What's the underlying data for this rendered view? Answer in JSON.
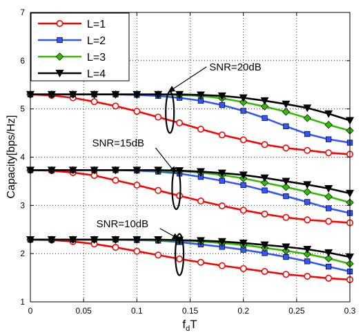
{
  "chart_data": {
    "type": "line",
    "xlabel": "f",
    "xlabel_sub": "d",
    "xlabel_suffix": "T",
    "ylabel": "Capacity[bps/Hz]",
    "xlim": [
      0,
      0.3
    ],
    "ylim": [
      1,
      7
    ],
    "x_ticks": [
      "0",
      "0.05",
      "0.1",
      "0.15",
      "0.2",
      "0.25",
      "0.3"
    ],
    "y_ticks": [
      "1",
      "2",
      "3",
      "4",
      "5",
      "6",
      "7"
    ],
    "grid": true,
    "legend_position": "top-left",
    "x": [
      0,
      0.02,
      0.04,
      0.06,
      0.08,
      0.1,
      0.12,
      0.14,
      0.16,
      0.18,
      0.2,
      0.22,
      0.24,
      0.26,
      0.28,
      0.3
    ],
    "series": [
      {
        "name": "L=1",
        "color": "#ff0000",
        "marker": "circle",
        "snr": "SNR=20dB",
        "values": [
          5.3,
          5.28,
          5.23,
          5.15,
          5.06,
          4.95,
          4.83,
          4.71,
          4.58,
          4.46,
          4.36,
          4.26,
          4.19,
          4.14,
          4.09,
          4.06
        ]
      },
      {
        "name": "L=2",
        "color": "#3355ff",
        "marker": "square",
        "snr": "SNR=20dB",
        "values": [
          5.3,
          5.3,
          5.3,
          5.3,
          5.3,
          5.29,
          5.27,
          5.23,
          5.17,
          5.08,
          4.96,
          4.81,
          4.64,
          4.48,
          4.37,
          4.3
        ]
      },
      {
        "name": "L=3",
        "color": "#33bb00",
        "marker": "diamond",
        "snr": "SNR=20dB",
        "values": [
          5.3,
          5.3,
          5.3,
          5.3,
          5.3,
          5.3,
          5.3,
          5.29,
          5.27,
          5.22,
          5.14,
          5.05,
          4.94,
          4.81,
          4.67,
          4.55
        ]
      },
      {
        "name": "L=4",
        "color": "#000000",
        "marker": "triangle-down",
        "snr": "SNR=20dB",
        "values": [
          5.3,
          5.3,
          5.3,
          5.3,
          5.3,
          5.3,
          5.3,
          5.3,
          5.29,
          5.27,
          5.23,
          5.17,
          5.1,
          5.02,
          4.9,
          4.76
        ]
      },
      {
        "name": "L=1",
        "color": "#ff0000",
        "marker": "circle",
        "snr": "SNR=15dB",
        "values": [
          3.73,
          3.72,
          3.68,
          3.62,
          3.52,
          3.42,
          3.31,
          3.2,
          3.09,
          2.99,
          2.9,
          2.82,
          2.75,
          2.7,
          2.67,
          2.64
        ]
      },
      {
        "name": "L=2",
        "color": "#3355ff",
        "marker": "square",
        "snr": "SNR=15dB",
        "values": [
          3.73,
          3.73,
          3.73,
          3.73,
          3.73,
          3.72,
          3.7,
          3.66,
          3.59,
          3.51,
          3.42,
          3.31,
          3.19,
          3.07,
          2.94,
          2.84
        ]
      },
      {
        "name": "L=3",
        "color": "#33bb00",
        "marker": "diamond",
        "snr": "SNR=15dB",
        "values": [
          3.73,
          3.73,
          3.73,
          3.73,
          3.73,
          3.73,
          3.72,
          3.71,
          3.68,
          3.63,
          3.56,
          3.47,
          3.38,
          3.28,
          3.18,
          3.06
        ]
      },
      {
        "name": "L=4",
        "color": "#000000",
        "marker": "triangle-down",
        "snr": "SNR=15dB",
        "values": [
          3.73,
          3.73,
          3.73,
          3.73,
          3.73,
          3.73,
          3.73,
          3.72,
          3.7,
          3.67,
          3.63,
          3.57,
          3.5,
          3.43,
          3.35,
          3.25
        ]
      },
      {
        "name": "L=1",
        "color": "#ff0000",
        "marker": "circle",
        "snr": "SNR=10dB",
        "values": [
          2.29,
          2.28,
          2.25,
          2.2,
          2.13,
          2.05,
          1.97,
          1.89,
          1.82,
          1.75,
          1.69,
          1.63,
          1.57,
          1.53,
          1.49,
          1.46
        ]
      },
      {
        "name": "L=2",
        "color": "#3355ff",
        "marker": "square",
        "snr": "SNR=10dB",
        "values": [
          2.29,
          2.29,
          2.29,
          2.29,
          2.29,
          2.28,
          2.27,
          2.24,
          2.19,
          2.14,
          2.08,
          2.01,
          1.93,
          1.84,
          1.73,
          1.63
        ]
      },
      {
        "name": "L=3",
        "color": "#33bb00",
        "marker": "diamond",
        "snr": "SNR=10dB",
        "values": [
          2.29,
          2.29,
          2.29,
          2.29,
          2.29,
          2.29,
          2.28,
          2.27,
          2.25,
          2.22,
          2.18,
          2.12,
          2.06,
          1.99,
          1.9,
          1.79
        ]
      },
      {
        "name": "L=4",
        "color": "#000000",
        "marker": "triangle-down",
        "snr": "SNR=10dB",
        "values": [
          2.29,
          2.29,
          2.29,
          2.29,
          2.29,
          2.29,
          2.29,
          2.28,
          2.27,
          2.25,
          2.22,
          2.18,
          2.14,
          2.09,
          2.02,
          1.93
        ]
      }
    ],
    "legend": [
      "L=1",
      "L=2",
      "L=3",
      "L=4"
    ],
    "annotations": [
      {
        "text": "SNR=20dB",
        "arrow_to": [
          0.13,
          5.3
        ],
        "ellipse_center": [
          0.131,
          4.93
        ],
        "text_at": [
          0.168,
          5.8
        ]
      },
      {
        "text": "SNR=15dB",
        "arrow_to": [
          0.136,
          3.62
        ],
        "ellipse_center": [
          0.137,
          3.35
        ],
        "text_at": [
          0.058,
          4.22
        ]
      },
      {
        "text": "SNR=10dB",
        "arrow_to": [
          0.139,
          2.25
        ],
        "ellipse_center": [
          0.14,
          1.98
        ],
        "text_at": [
          0.062,
          2.55
        ]
      }
    ]
  }
}
